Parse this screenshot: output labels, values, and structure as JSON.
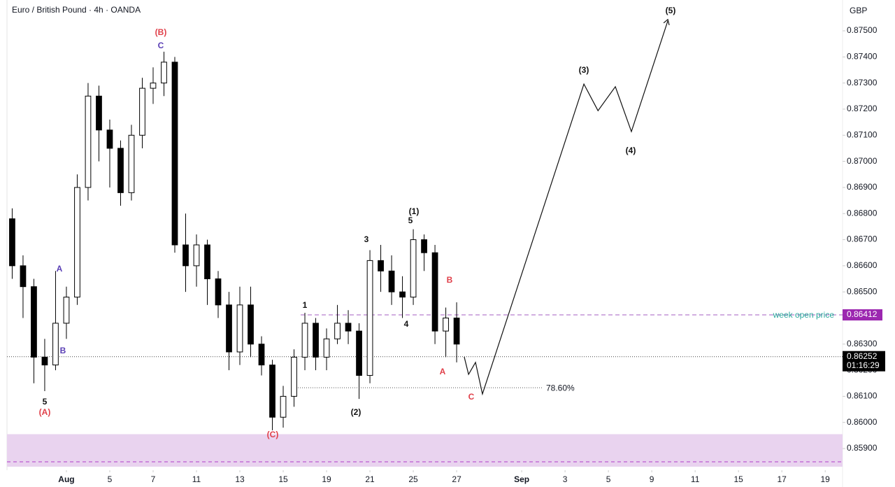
{
  "chart_data": {
    "type": "candlestick",
    "title": "Euro / British Pound · 4h · OANDA",
    "y_axis_label": "GBP",
    "x": [
      -2.5,
      -2.0,
      -1.5,
      -1.0,
      -0.5,
      0,
      0.5,
      1.0,
      1.5,
      2.0,
      2.5,
      3.0,
      3.5,
      4.0,
      4.5,
      5.0,
      5.5,
      6.0,
      6.5,
      7.0,
      7.5,
      8.0,
      8.5,
      9.0,
      9.5,
      10.0,
      10.5,
      11.0,
      11.5,
      12.0,
      12.5,
      13.0,
      13.5,
      14.0,
      14.5,
      15.0,
      15.5,
      16.0,
      16.5,
      17.0,
      17.5,
      18.0
    ],
    "open": [
      0.8678,
      0.866,
      0.8652,
      0.8625,
      0.8622,
      0.8638,
      0.8648,
      0.869,
      0.8725,
      0.8712,
      0.8705,
      0.8688,
      0.871,
      0.8728,
      0.873,
      0.8738,
      0.8668,
      0.866,
      0.8668,
      0.8655,
      0.8645,
      0.8627,
      0.8645,
      0.863,
      0.8622,
      0.8602,
      0.861,
      0.8625,
      0.8638,
      0.8625,
      0.8632,
      0.8638,
      0.8635,
      0.8618,
      0.8662,
      0.8658,
      0.865,
      0.8648,
      0.867,
      0.8665,
      0.8635,
      0.864
    ],
    "high": [
      0.8682,
      0.8664,
      0.8655,
      0.8632,
      0.8658,
      0.8652,
      0.8695,
      0.873,
      0.8729,
      0.8716,
      0.8708,
      0.8714,
      0.8732,
      0.8736,
      0.8742,
      0.874,
      0.868,
      0.8672,
      0.867,
      0.8658,
      0.865,
      0.8652,
      0.8652,
      0.8633,
      0.8624,
      0.8614,
      0.8628,
      0.8642,
      0.864,
      0.8636,
      0.8645,
      0.8643,
      0.8638,
      0.8666,
      0.8668,
      0.8664,
      0.8656,
      0.8674,
      0.8672,
      0.8668,
      0.8644,
      0.8646
    ],
    "low": [
      0.8655,
      0.864,
      0.8615,
      0.8612,
      0.862,
      0.8632,
      0.8645,
      0.8685,
      0.87,
      0.869,
      0.8683,
      0.8685,
      0.8705,
      0.8722,
      0.8725,
      0.8665,
      0.865,
      0.8652,
      0.8645,
      0.864,
      0.862,
      0.8622,
      0.8625,
      0.8618,
      0.8597,
      0.8598,
      0.8606,
      0.862,
      0.862,
      0.862,
      0.863,
      0.863,
      0.8609,
      0.8615,
      0.865,
      0.8645,
      0.864,
      0.8645,
      0.8658,
      0.863,
      0.8625,
      0.8623
    ],
    "close": [
      0.866,
      0.8652,
      0.8625,
      0.8622,
      0.8638,
      0.8648,
      0.869,
      0.8725,
      0.8712,
      0.8705,
      0.8688,
      0.871,
      0.8728,
      0.873,
      0.8738,
      0.8668,
      0.866,
      0.8668,
      0.8655,
      0.8645,
      0.8627,
      0.8645,
      0.863,
      0.8622,
      0.8602,
      0.861,
      0.8625,
      0.8638,
      0.8625,
      0.8632,
      0.8638,
      0.8635,
      0.8618,
      0.8662,
      0.8658,
      0.865,
      0.8648,
      0.867,
      0.8665,
      0.8635,
      0.864,
      0.863
    ],
    "projection": {
      "x": [
        18.35,
        18.55,
        18.87,
        19.19,
        23.87,
        24.52,
        25.32,
        26.06,
        27.74
      ],
      "y": [
        0.86251,
        0.86184,
        0.8623,
        0.86109,
        0.87296,
        0.87194,
        0.87286,
        0.87114,
        0.87538
      ]
    },
    "levels": [
      {
        "label": "week open price",
        "value": 0.86412
      },
      {
        "label": "78.60%",
        "value": 0.86133
      }
    ],
    "last_price": {
      "value": 0.86252,
      "countdown": "01:16:29"
    },
    "zone": {
      "low": 0.85817,
      "high": 0.85955,
      "line": 0.85849
    },
    "annotations": [
      "(B)",
      "C",
      "A",
      "B",
      "5",
      "(A)",
      "1",
      "(2)",
      "3",
      "5",
      "(1)",
      "4",
      "B",
      "A",
      "C",
      "(C)",
      "(3)",
      "(4)",
      "(5)"
    ],
    "xlim": [
      -2.74,
      35.8
    ],
    "xticks": [
      {
        "value": 0,
        "label": "Aug"
      },
      {
        "value": 2,
        "label": "5"
      },
      {
        "value": 4,
        "label": "7"
      },
      {
        "value": 6,
        "label": "11"
      },
      {
        "value": 8,
        "label": "13"
      },
      {
        "value": 10,
        "label": "15"
      },
      {
        "value": 12,
        "label": "19"
      },
      {
        "value": 14,
        "label": "21"
      },
      {
        "value": 16,
        "label": "25"
      },
      {
        "value": 18,
        "label": "27"
      },
      {
        "value": 21,
        "label": "Sep"
      },
      {
        "value": 23,
        "label": "3"
      },
      {
        "value": 25,
        "label": "5"
      },
      {
        "value": 27,
        "label": "9"
      },
      {
        "value": 29,
        "label": "11"
      },
      {
        "value": 31,
        "label": "15"
      },
      {
        "value": 33,
        "label": "17"
      },
      {
        "value": 35,
        "label": "19"
      }
    ],
    "ylim": [
      0.85817,
      0.87618
    ],
    "yticks": [
      {
        "value": 0.859,
        "label": "0.85900"
      },
      {
        "value": 0.86,
        "label": "0.86000"
      },
      {
        "value": 0.861,
        "label": "0.86100"
      },
      {
        "value": 0.862,
        "label": "0.86200"
      },
      {
        "value": 0.863,
        "label": "0.86300"
      },
      {
        "value": 0.864,
        "label": "0.86400"
      },
      {
        "value": 0.865,
        "label": "0.86500"
      },
      {
        "value": 0.866,
        "label": "0.86600"
      },
      {
        "value": 0.867,
        "label": "0.86700"
      },
      {
        "value": 0.868,
        "label": "0.86800"
      },
      {
        "value": 0.869,
        "label": "0.86900"
      },
      {
        "value": 0.87,
        "label": "0.87000"
      },
      {
        "value": 0.871,
        "label": "0.87100"
      },
      {
        "value": 0.872,
        "label": "0.87200"
      },
      {
        "value": 0.873,
        "label": "0.87300"
      },
      {
        "value": 0.874,
        "label": "0.87400"
      },
      {
        "value": 0.875,
        "label": "0.87500"
      }
    ]
  }
}
